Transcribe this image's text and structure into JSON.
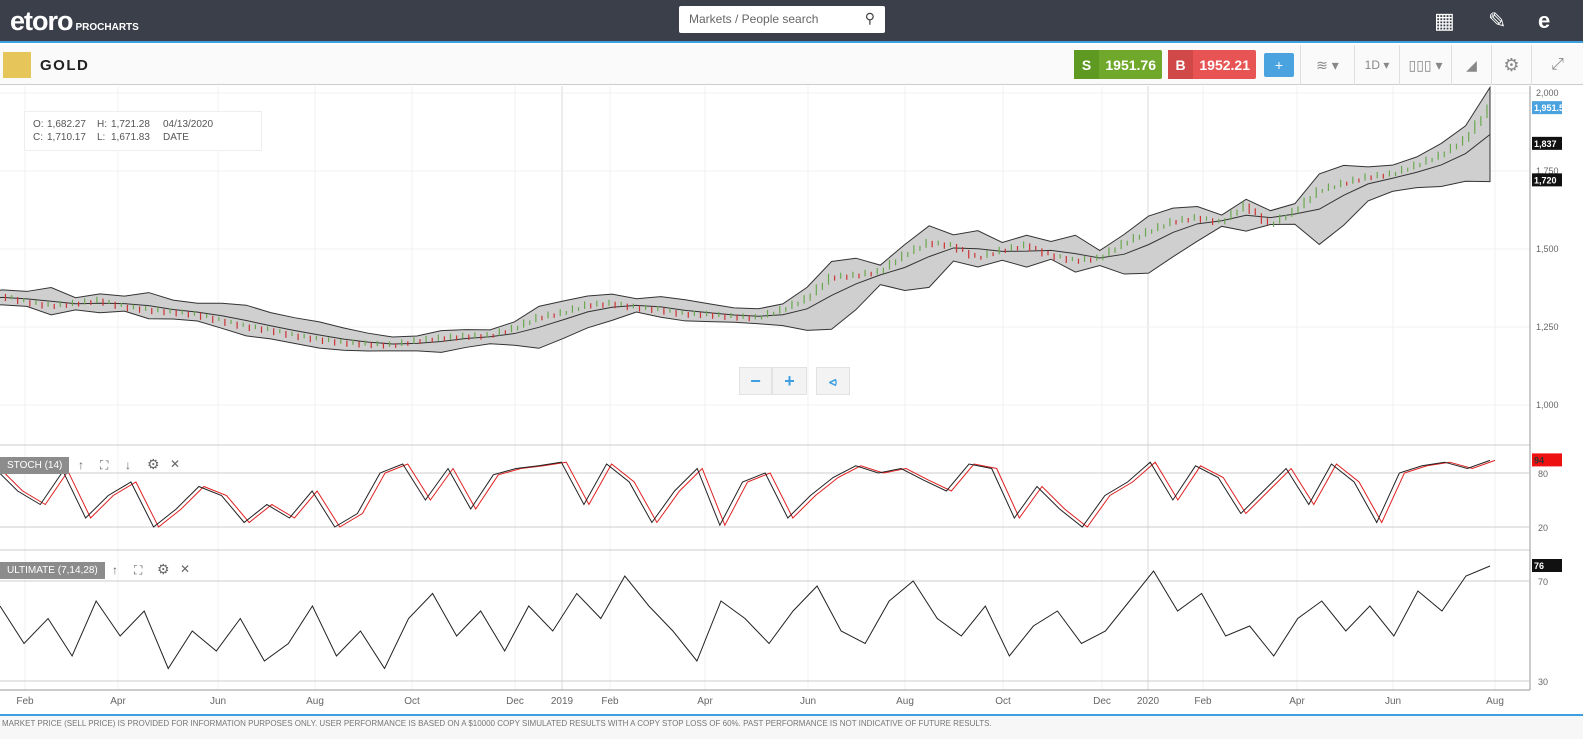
{
  "header": {
    "logo": "etoro",
    "logo_sub": "PROCHARTS",
    "search_placeholder": "Markets / People search",
    "icons": [
      "layout-icon",
      "pencil-icon",
      "etoro-profile-icon"
    ]
  },
  "toolbar": {
    "instrument": "GOLD",
    "sell_label": "S",
    "sell_price": "1951.76",
    "buy_label": "B",
    "buy_price": "1952.21",
    "timeframe": "1D",
    "colors": {
      "sell": "#6fa82a",
      "buy": "#e05555",
      "accent": "#3d9ee0"
    }
  },
  "ohlc": {
    "o_label": "O:",
    "o": "1,682.27",
    "h_label": "H:",
    "h": "1,721.28",
    "date": "04/13/2020",
    "c_label": "C:",
    "c": "1,710.17",
    "l_label": "L:",
    "l": "1,671.83",
    "date_label": "DATE"
  },
  "zoom": {
    "minus": "−",
    "plus": "+"
  },
  "panes": {
    "stoch": {
      "label": "STOCH (14)",
      "levels": [
        "80",
        "20"
      ],
      "last": "94"
    },
    "ultimate": {
      "label": "ULTIMATE (7,14,28)",
      "levels": [
        "70",
        "30"
      ],
      "last": "76"
    }
  },
  "price_axis": {
    "ticks": [
      "2,000",
      "1,750",
      "1,500",
      "1,250",
      "1,000"
    ],
    "last_price": "1,951.53",
    "bb_upper": "1,837",
    "bb_lower": "1,720"
  },
  "x_axis": [
    "Feb",
    "Apr",
    "Jun",
    "Aug",
    "Oct",
    "Dec",
    "2019",
    "Feb",
    "Apr",
    "Jun",
    "Aug",
    "Oct",
    "Dec",
    "2020",
    "Feb",
    "Apr",
    "Jun",
    "Aug"
  ],
  "disclaimer": "MARKET PRICE (SELL PRICE) IS PROVIDED FOR INFORMATION PURPOSES ONLY. USER PERFORMANCE IS BASED ON A $10000 COPY SIMULATED RESULTS WITH A COPY STOP LOSS OF 60%. PAST PERFORMANCE IS NOT INDICATIVE OF FUTURE RESULTS.",
  "chart_data": {
    "type": "line",
    "ylim": [
      1000,
      2000
    ],
    "price_monthly": [
      1340,
      1350,
      1330,
      1318,
      1325,
      1335,
      1315,
      1305,
      1298,
      1290,
      1270,
      1252,
      1240,
      1223,
      1210,
      1200,
      1195,
      1192,
      1205,
      1214,
      1220,
      1222,
      1245,
      1280,
      1295,
      1320,
      1325,
      1313,
      1305,
      1292,
      1290,
      1283,
      1280,
      1305,
      1340,
      1409,
      1415,
      1427,
      1480,
      1520,
      1510,
      1472,
      1495,
      1512,
      1480,
      1463,
      1470,
      1517,
      1555,
      1587,
      1600,
      1585,
      1640,
      1577,
      1620,
      1686,
      1710,
      1730,
      1740,
      1768,
      1800,
      1850,
      1951
    ],
    "stoch": [
      85,
      60,
      45,
      82,
      30,
      55,
      70,
      20,
      40,
      65,
      55,
      25,
      45,
      30,
      60,
      20,
      35,
      80,
      90,
      50,
      85,
      40,
      78,
      85,
      88,
      92,
      45,
      90,
      70,
      25,
      60,
      85,
      22,
      70,
      80,
      30,
      55,
      75,
      88,
      80,
      85,
      72,
      60,
      90,
      85,
      30,
      65,
      40,
      20,
      55,
      70,
      92,
      50,
      88,
      75,
      35,
      60,
      85,
      45,
      90,
      70,
      25,
      80,
      88,
      92,
      85,
      94
    ],
    "ultimate": [
      60,
      45,
      55,
      40,
      62,
      48,
      58,
      35,
      50,
      42,
      55,
      38,
      45,
      60,
      40,
      50,
      35,
      55,
      65,
      48,
      58,
      42,
      60,
      50,
      65,
      55,
      72,
      60,
      50,
      38,
      62,
      55,
      45,
      58,
      68,
      50,
      45,
      62,
      70,
      55,
      48,
      60,
      40,
      52,
      58,
      45,
      50,
      62,
      74,
      58,
      65,
      48,
      52,
      40,
      55,
      62,
      50,
      60,
      48,
      66,
      58,
      72,
      76
    ]
  }
}
